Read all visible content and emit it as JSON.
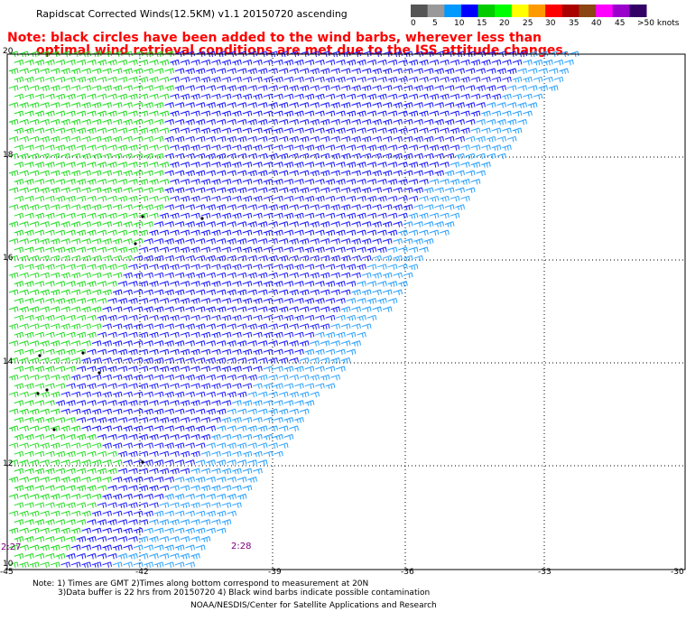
{
  "title": "Rapidscat Corrected Winds(12.5KM) v1.1 20150720 ascending",
  "note_line1": "Note: black circles have been added to the wind barbs, wherever less than",
  "note_line2": "optimal wind retrieval conditions are met due to the ISS attitude changes.",
  "color_scale": {
    "labels": [
      "0",
      "5",
      "10",
      "15",
      "20",
      "25",
      "30",
      "35",
      "40",
      "45",
      ">50 knots"
    ],
    "colors": [
      "#555555",
      "#999999",
      "#0099ff",
      "#0000ff",
      "#00cc00",
      "#00ff00",
      "#ffff00",
      "#ff9900",
      "#ff0000",
      "#aa0000",
      "#8b4513",
      "#ff00ff",
      "#9900cc",
      "#330066"
    ]
  },
  "axes": {
    "x_ticks": [
      "-45",
      "-42",
      "-39",
      "-36",
      "-33",
      "-30"
    ],
    "y_ticks": [
      "20",
      "18",
      "16",
      "14",
      "12",
      "10"
    ]
  },
  "time_labels": [
    "2:27",
    "2:28"
  ],
  "footnote_line1": "Note: 1) Times are GMT 2)Times along bottom correspond to measurement at 20N",
  "footnote_line2": "3)Data buffer is 22 hrs from 20150720 4) Black wind barbs indicate possible contamination",
  "credit": "NOAA/NESDIS/Center for Satellite Applications and Research",
  "barb_colors": {
    "blue": "#1a1aff",
    "lightblue": "#2aa0ff",
    "green": "#22dd22",
    "black": "#000000"
  }
}
